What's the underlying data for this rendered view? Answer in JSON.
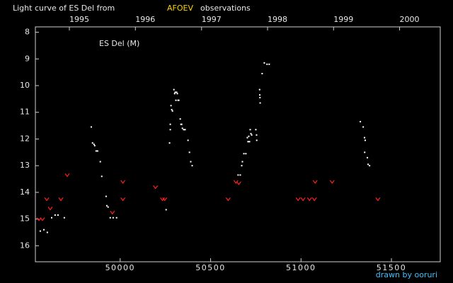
{
  "chart_data": {
    "type": "scatter",
    "title": "Light curve of ES Del from",
    "title_source": "AFOEV",
    "title_suffix": "observations",
    "annotation": "ES Del (M)",
    "credit": "drawn by ooruri",
    "title_source_color": "#ffd200",
    "credit_color": "#40c0ff",
    "xlim": [
      49531,
      51770
    ],
    "xticks": [
      50000,
      50500,
      51000,
      51500
    ],
    "x2ticks": [
      {
        "value": 49719,
        "label": "1995"
      },
      {
        "value": 50084,
        "label": "1996"
      },
      {
        "value": 50450,
        "label": "1997"
      },
      {
        "value": 50815,
        "label": "1998"
      },
      {
        "value": 51180,
        "label": "1999"
      },
      {
        "value": 51545,
        "label": "2000"
      }
    ],
    "ylim": [
      7.8,
      16.6
    ],
    "y_inverted": true,
    "yticks": [
      8,
      9,
      10,
      11,
      12,
      13,
      14,
      15,
      16
    ],
    "series": [
      {
        "color": "#ffffff",
        "marker": "dot",
        "x": [
          49558,
          49578,
          49597,
          49621,
          49640,
          49656,
          49691,
          49840,
          49847,
          49855,
          49859,
          49867,
          49875,
          49890,
          49898,
          49922,
          49926,
          49933,
          49945,
          49961,
          49980,
          50254,
          50273,
          50277,
          50277,
          50281,
          50285,
          50289,
          50297,
          50301,
          50304,
          50308,
          50312,
          50316,
          50320,
          50324,
          50332,
          50336,
          50340,
          50344,
          50351,
          50359,
          50375,
          50383,
          50390,
          50398,
          50652,
          50664,
          50672,
          50676,
          50684,
          50695,
          50703,
          50707,
          50711,
          50715,
          50719,
          50723,
          50727,
          50750,
          50754,
          50755,
          50771,
          50772,
          50773,
          50774,
          50785,
          50797,
          50812,
          50824,
          51328,
          51344,
          51351,
          51355,
          51352,
          51367,
          51371,
          51379
        ],
        "values": [
          15.45,
          15.4,
          15.5,
          14.95,
          14.85,
          14.85,
          14.95,
          11.55,
          12.15,
          12.2,
          12.25,
          12.45,
          12.45,
          12.85,
          13.4,
          14.15,
          14.5,
          14.55,
          14.95,
          14.95,
          14.95,
          14.65,
          12.15,
          11.45,
          11.65,
          10.75,
          10.9,
          10.95,
          10.15,
          10.3,
          10.25,
          10.55,
          10.25,
          10.3,
          10.55,
          10.55,
          11.25,
          11.45,
          11.45,
          11.6,
          11.65,
          11.65,
          12.05,
          12.5,
          12.85,
          13.0,
          13.35,
          13.35,
          13.0,
          12.85,
          12.55,
          12.55,
          11.95,
          12.1,
          11.9,
          12.1,
          11.65,
          11.8,
          11.85,
          11.65,
          11.85,
          12.05,
          10.15,
          10.35,
          10.45,
          10.65,
          9.55,
          9.15,
          9.2,
          9.2,
          11.35,
          11.55,
          11.95,
          12.05,
          12.5,
          12.7,
          12.95,
          13.0
        ]
      },
      {
        "color": "#ff2020",
        "marker": "v",
        "x": [
          49551,
          49570,
          49594,
          49613,
          49672,
          49707,
          49957,
          50015,
          50015,
          50195,
          50234,
          50246,
          50597,
          50640,
          50656,
          50984,
          51011,
          51047,
          51074,
          51078,
          51172,
          51425
        ],
        "values": [
          15.0,
          15.0,
          14.25,
          14.6,
          14.25,
          13.35,
          14.75,
          13.6,
          14.25,
          13.8,
          14.25,
          14.25,
          14.25,
          13.6,
          13.65,
          14.25,
          14.25,
          14.25,
          14.25,
          13.6,
          13.6,
          14.25
        ]
      }
    ]
  }
}
